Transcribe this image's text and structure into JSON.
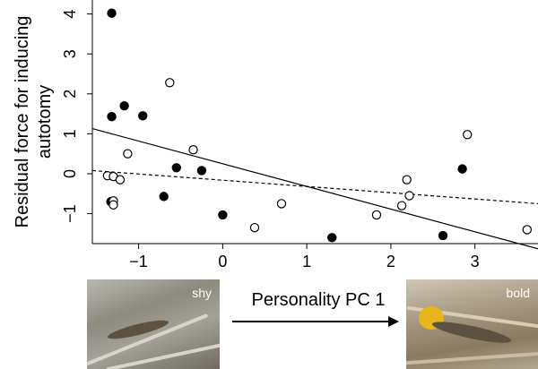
{
  "chart_data": {
    "type": "scatter",
    "title": "",
    "xlabel": "Personality PC 1",
    "ylabel": "Residual force for inducing autotomy",
    "ylabel_lines": [
      "Residual force for inducing",
      "autotomy"
    ],
    "xlim": [
      -1.55,
      3.75
    ],
    "ylim": [
      -1.75,
      4.35
    ],
    "xticks": [
      -1,
      0,
      1,
      2,
      3
    ],
    "xtick_labels": [
      "−1",
      "0",
      "1",
      "2",
      "3"
    ],
    "yticks": [
      -1,
      0,
      1,
      2,
      3,
      4
    ],
    "ytick_labels": [
      "−1",
      "0",
      "1",
      "2",
      "3",
      "4"
    ],
    "grid": false,
    "series": [
      {
        "marker": "filled-circle",
        "line_style": "solid",
        "points": [
          [
            -1.32,
            4.02
          ],
          [
            -1.32,
            1.43
          ],
          [
            -1.17,
            1.7
          ],
          [
            -0.95,
            1.45
          ],
          [
            -1.33,
            -0.7
          ],
          [
            -0.55,
            0.15
          ],
          [
            -0.25,
            0.08
          ],
          [
            -0.7,
            -0.57
          ],
          [
            0.0,
            -1.03
          ],
          [
            1.3,
            -1.6
          ],
          [
            2.62,
            -1.55
          ],
          [
            2.85,
            0.12
          ]
        ],
        "fit_line": [
          [
            -1.55,
            1.13
          ],
          [
            3.75,
            -1.88
          ]
        ]
      },
      {
        "marker": "open-circle",
        "line_style": "dashed",
        "points": [
          [
            -0.63,
            2.28
          ],
          [
            -1.13,
            0.5
          ],
          [
            -0.35,
            0.6
          ],
          [
            -1.37,
            -0.05
          ],
          [
            -1.3,
            -0.07
          ],
          [
            -1.22,
            -0.15
          ],
          [
            -1.3,
            -0.68
          ],
          [
            -1.3,
            -0.78
          ],
          [
            0.38,
            -1.35
          ],
          [
            0.7,
            -0.75
          ],
          [
            1.83,
            -1.03
          ],
          [
            2.13,
            -0.8
          ],
          [
            2.19,
            -0.15
          ],
          [
            2.22,
            -0.55
          ],
          [
            2.91,
            0.98
          ],
          [
            3.62,
            -1.4
          ]
        ],
        "fit_line": [
          [
            -1.55,
            0.08
          ],
          [
            3.75,
            -0.75
          ]
        ]
      }
    ]
  },
  "figure": {
    "axis_title": "Personality PC 1",
    "photos": {
      "left_label": "shy",
      "right_label": "bold"
    }
  }
}
